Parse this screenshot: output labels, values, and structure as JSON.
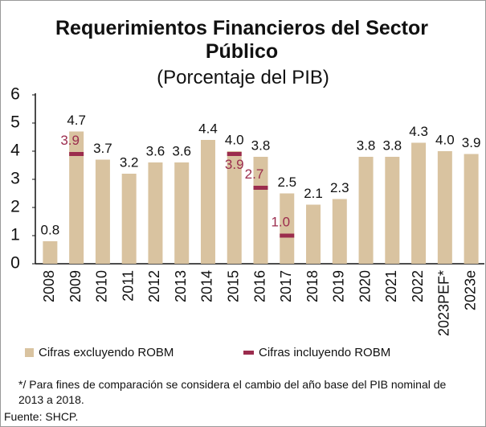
{
  "chart_data": {
    "type": "bar",
    "title": "Requerimientos Financieros del Sector Público",
    "subtitle": "(Porcentaje del PIB)",
    "categories": [
      "2008",
      "2009",
      "2010",
      "2011",
      "2012",
      "2013",
      "2014",
      "2015",
      "2016",
      "2017",
      "2018",
      "2019",
      "2020",
      "2021",
      "2022",
      "2023PEF*",
      "2023e"
    ],
    "series": [
      {
        "name": "Cifras excluyendo ROBM",
        "color": "#d9c3a0",
        "values": [
          0.8,
          4.7,
          3.7,
          3.2,
          3.6,
          3.6,
          4.4,
          4.0,
          3.8,
          2.5,
          2.1,
          2.3,
          3.8,
          3.8,
          4.3,
          4.0,
          3.9
        ],
        "value_labels": [
          "0.8",
          "4.7",
          "3.7",
          "3.2",
          "3.6",
          "3.6",
          "4.4",
          "4.0",
          "3.8",
          "2.5",
          "2.1",
          "2.3",
          "3.8",
          "3.8",
          "4.3",
          "4.0",
          "3.9"
        ]
      },
      {
        "name": "Cifras incluyendo ROBM",
        "color": "#9b2c4d",
        "values": [
          null,
          3.9,
          null,
          null,
          null,
          null,
          null,
          3.9,
          2.7,
          1.0,
          null,
          null,
          null,
          null,
          null,
          null,
          null
        ],
        "value_labels": [
          null,
          "3.9",
          null,
          null,
          null,
          null,
          null,
          "3.9",
          "2.7",
          "1.0",
          null,
          null,
          null,
          null,
          null,
          null,
          null
        ]
      }
    ],
    "ylim": [
      0,
      6
    ],
    "yticks": [
      0,
      1,
      2,
      3,
      4,
      5,
      6
    ],
    "note": "*/ Para fines de comparación se considera el cambio del año base del PIB nominal de 2013 a 2018.",
    "source": "Fuente: SHCP."
  }
}
